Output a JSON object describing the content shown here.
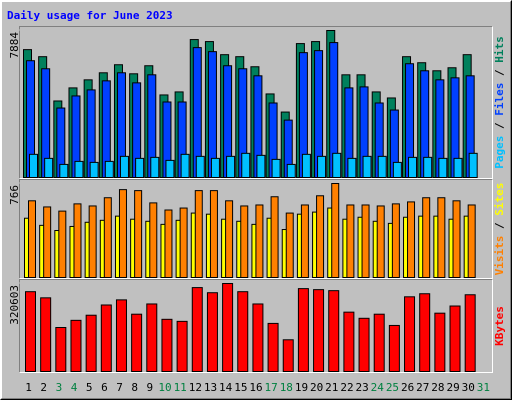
{
  "chart_data": {
    "type": "bar",
    "title": "Daily usage for June 2023",
    "categories": [
      "1",
      "2",
      "3",
      "4",
      "5",
      "6",
      "7",
      "8",
      "9",
      "10",
      "11",
      "12",
      "13",
      "14",
      "15",
      "16",
      "17",
      "18",
      "19",
      "20",
      "21",
      "22",
      "23",
      "24",
      "25",
      "26",
      "27",
      "28",
      "29",
      "30",
      "31"
    ],
    "category_colors": [
      "#000000",
      "#000000",
      "#008040",
      "#008040",
      "#000000",
      "#000000",
      "#000000",
      "#000000",
      "#000000",
      "#008040",
      "#008040",
      "#000000",
      "#000000",
      "#000000",
      "#000000",
      "#000000",
      "#008040",
      "#008040",
      "#000000",
      "#000000",
      "#000000",
      "#000000",
      "#000000",
      "#008040",
      "#008040",
      "#000000",
      "#000000",
      "#000000",
      "#000000",
      "#000000",
      "#008040"
    ],
    "legend_separator": " / ",
    "panels": [
      {
        "ylim": [
          0,
          7884
        ],
        "yticks": [
          7884
        ],
        "series": [
          {
            "name": "Hits",
            "color": "#00805c",
            "values": [
              6858,
              6480,
              4104,
              4806,
              5238,
              5616,
              6048,
              5562,
              5994,
              4428,
              4590,
              7398,
              7290,
              6588,
              6480,
              5940,
              4482,
              3510,
              7182,
              7290,
              7884,
              5508,
              5508,
              4590,
              4266,
              6480,
              6156,
              5724,
              5886,
              6588,
              null
            ]
          },
          {
            "name": "Files",
            "color": "#0040ff",
            "values": [
              6264,
              5832,
              3726,
              4374,
              4698,
              5184,
              5616,
              5076,
              5508,
              4050,
              4050,
              6966,
              6750,
              5994,
              5832,
              5454,
              3996,
              3078,
              6696,
              6804,
              7236,
              4806,
              4860,
              3996,
              3618,
              6102,
              5724,
              5238,
              5346,
              5454,
              null
            ]
          },
          {
            "name": "Pages",
            "color": "#00c0ff",
            "values": [
              1242,
              1026,
              702,
              864,
              810,
              864,
              1134,
              1026,
              1080,
              918,
              1242,
              1134,
              1026,
              1134,
              1296,
              1188,
              972,
              702,
              1242,
              1134,
              1296,
              1026,
              1134,
              1134,
              810,
              1080,
              1080,
              1026,
              1026,
              1296,
              null
            ]
          }
        ]
      },
      {
        "ylim": [
          0,
          766
        ],
        "yticks": [
          766
        ],
        "series": [
          {
            "name": "Sites",
            "color": "#ffff00",
            "values": [
              483,
              425,
              383,
              416,
              450,
              466,
              500,
              475,
              458,
              433,
              466,
              525,
              516,
              475,
              458,
              433,
              483,
              391,
              516,
              533,
              566,
              475,
              491,
              458,
              441,
              491,
              500,
              500,
              475,
              500,
              null
            ]
          },
          {
            "name": "Visits",
            "color": "#ff8000",
            "values": [
              625,
              575,
              541,
              600,
              583,
              650,
              716,
              708,
              608,
              550,
              566,
              708,
              708,
              625,
              583,
              591,
              658,
              525,
              591,
              666,
              766,
              591,
              591,
              583,
              600,
              616,
              650,
              650,
              625,
              591,
              null
            ]
          }
        ]
      },
      {
        "ylim": [
          0,
          320603
        ],
        "yticks": [
          320603
        ],
        "series": [
          {
            "name": "KBytes",
            "color": "#ff0000",
            "values": [
              290784,
              268416,
              160304,
              186400,
              205040,
              242320,
              260960,
              208768,
              246048,
              190128,
              182672,
              305696,
              287056,
              320603,
              290784,
              246048,
              175216,
              115568,
              301968,
              298240,
              294512,
              216224,
              193856,
              208768,
              167760,
              272144,
              283328,
              212496,
              238592,
              279600,
              null
            ]
          }
        ]
      }
    ]
  }
}
